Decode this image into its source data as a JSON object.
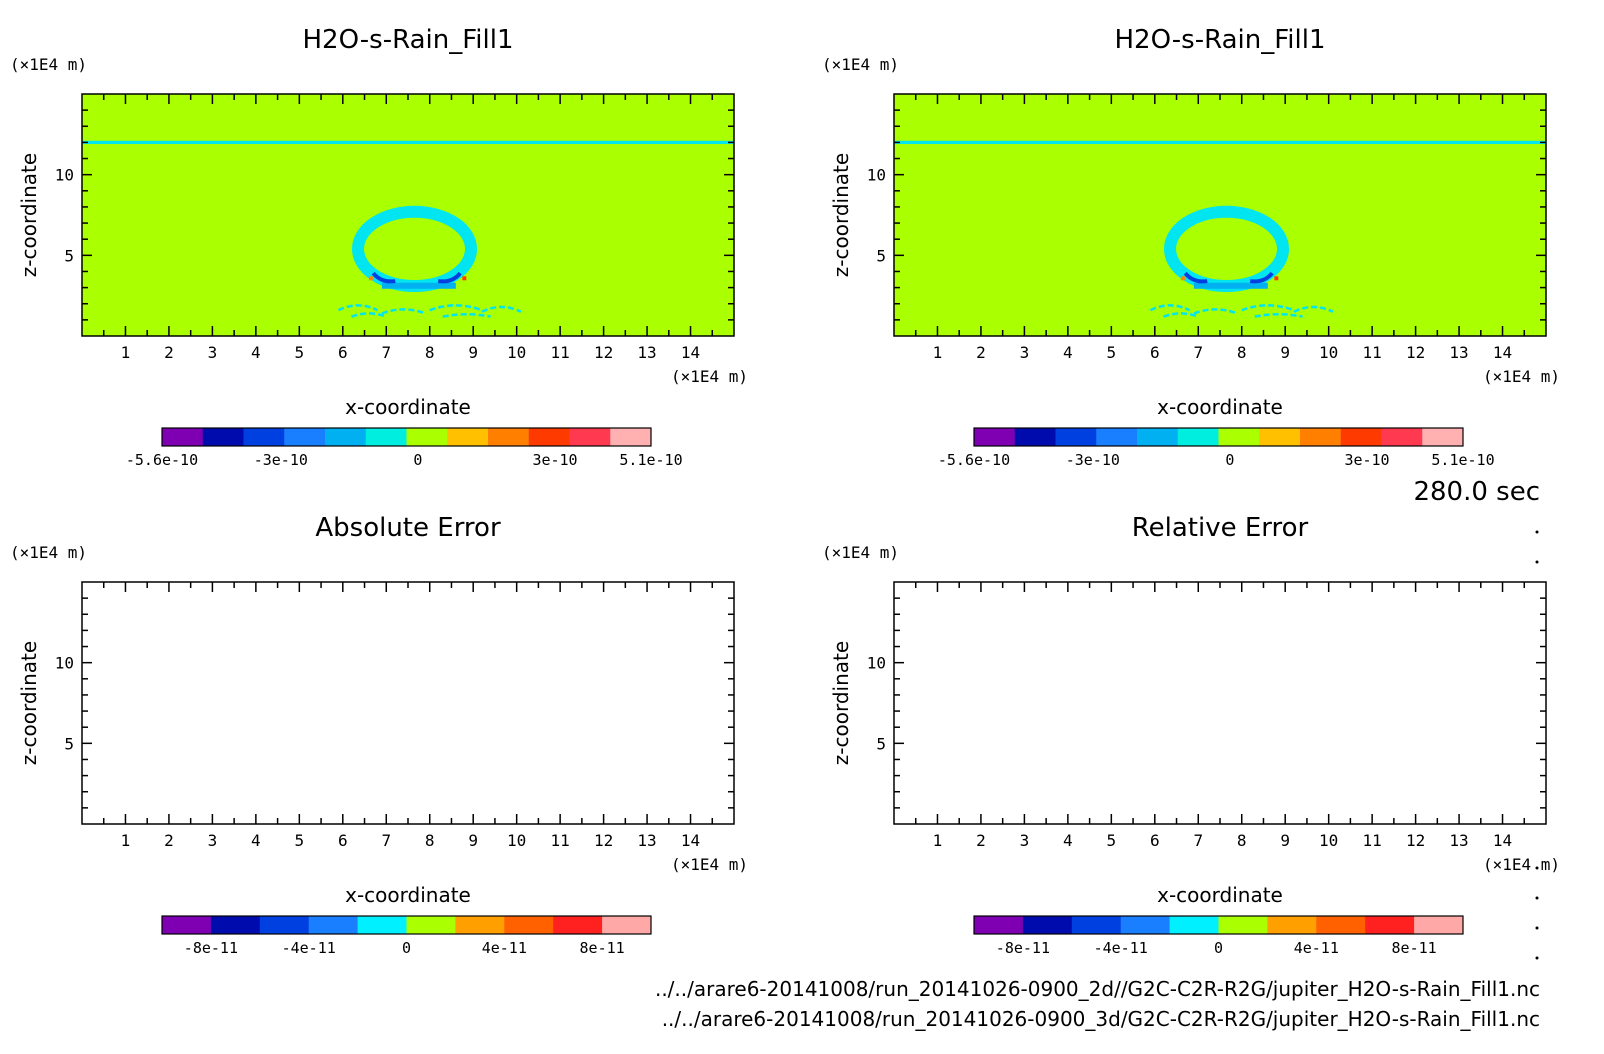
{
  "time_label": "280.0 sec",
  "file_paths": [
    "../../arare6-20141008/run_20141026-0900_2d//G2C-C2R-R2G/jupiter_H2O-s-Rain_Fill1.nc",
    "../../arare6-20141008/run_20141026-0900_3d/G2C-C2R-R2G/jupiter_H2O-s-Rain_Fill1.nc"
  ],
  "colors": {
    "background_field": "#aaff00",
    "cyan_level": "#00e5f0",
    "colorbar_a": [
      "#7f00b3",
      "#000bad",
      "#0040e0",
      "#1a7fff",
      "#00b0f0",
      "#00eee0",
      "#aaff00",
      "#ffc000",
      "#ff8000",
      "#ff3a00",
      "#ff3a50",
      "#ffb0b0"
    ],
    "colorbar_b": [
      "#7f00b3",
      "#000bad",
      "#0040e0",
      "#1a7fff",
      "#00f0ff",
      "#aaff00",
      "#ffa000",
      "#ff6000",
      "#ff2020",
      "#ffa8a8"
    ]
  },
  "chart_data": [
    {
      "type": "heatmap",
      "title": "H2O-s-Rain_Fill1",
      "xlabel": "x-coordinate",
      "ylabel": "z-coordinate",
      "x_unit": "(×1E4 m)",
      "y_unit": "(×1E4 m)",
      "xlim": [
        0,
        15
      ],
      "ylim": [
        0,
        15
      ],
      "xticks": [
        1,
        2,
        3,
        4,
        5,
        6,
        7,
        8,
        9,
        10,
        11,
        12,
        13,
        14
      ],
      "yticks": [
        5,
        10
      ],
      "field": "filled",
      "colorbar_ticks": [
        {
          "label": "-5.6e-10",
          "value": -5.6e-10
        },
        {
          "label": "-3e-10",
          "value": -3e-10
        },
        {
          "label": "0",
          "value": 0
        },
        {
          "label": "3e-10",
          "value": 3e-10
        },
        {
          "label": "5.1e-10",
          "value": 5.1e-10
        }
      ],
      "colorbar_range": [
        -5.6e-10,
        5.1e-10
      ],
      "colorbar_set": "a"
    },
    {
      "type": "heatmap",
      "title": "H2O-s-Rain_Fill1",
      "xlabel": "x-coordinate",
      "ylabel": "z-coordinate",
      "x_unit": "(×1E4 m)",
      "y_unit": "(×1E4 m)",
      "xlim": [
        0,
        15
      ],
      "ylim": [
        0,
        15
      ],
      "xticks": [
        1,
        2,
        3,
        4,
        5,
        6,
        7,
        8,
        9,
        10,
        11,
        12,
        13,
        14
      ],
      "yticks": [
        5,
        10
      ],
      "field": "filled",
      "colorbar_ticks": [
        {
          "label": "-5.6e-10",
          "value": -5.6e-10
        },
        {
          "label": "-3e-10",
          "value": -3e-10
        },
        {
          "label": "0",
          "value": 0
        },
        {
          "label": "3e-10",
          "value": 3e-10
        },
        {
          "label": "5.1e-10",
          "value": 5.1e-10
        }
      ],
      "colorbar_range": [
        -5.6e-10,
        5.1e-10
      ],
      "colorbar_set": "a"
    },
    {
      "type": "heatmap",
      "title": "Absolute Error",
      "xlabel": "x-coordinate",
      "ylabel": "z-coordinate",
      "x_unit": "(×1E4 m)",
      "y_unit": "(×1E4 m)",
      "xlim": [
        0,
        15
      ],
      "ylim": [
        0,
        15
      ],
      "xticks": [
        1,
        2,
        3,
        4,
        5,
        6,
        7,
        8,
        9,
        10,
        11,
        12,
        13,
        14
      ],
      "yticks": [
        5,
        10
      ],
      "field": "empty",
      "colorbar_ticks": [
        {
          "label": "-8e-11",
          "value": -8e-11
        },
        {
          "label": "-4e-11",
          "value": -4e-11
        },
        {
          "label": "0",
          "value": 0
        },
        {
          "label": "4e-11",
          "value": 4e-11
        },
        {
          "label": "8e-11",
          "value": 8e-11
        }
      ],
      "colorbar_range": [
        -1e-10,
        1e-10
      ],
      "colorbar_set": "b"
    },
    {
      "type": "heatmap",
      "title": "Relative Error",
      "xlabel": "x-coordinate",
      "ylabel": "z-coordinate",
      "x_unit": "(×1E4 m)",
      "y_unit": "(×1E4 m)",
      "xlim": [
        0,
        15
      ],
      "ylim": [
        0,
        15
      ],
      "xticks": [
        1,
        2,
        3,
        4,
        5,
        6,
        7,
        8,
        9,
        10,
        11,
        12,
        13,
        14
      ],
      "yticks": [
        5,
        10
      ],
      "field": "empty",
      "colorbar_ticks": [
        {
          "label": "-8e-11",
          "value": -8e-11
        },
        {
          "label": "-4e-11",
          "value": -4e-11
        },
        {
          "label": "0",
          "value": 0
        },
        {
          "label": "4e-11",
          "value": 4e-11
        },
        {
          "label": "8e-11",
          "value": 8e-11
        }
      ],
      "colorbar_range": [
        -1e-10,
        1e-10
      ],
      "colorbar_set": "b"
    }
  ]
}
